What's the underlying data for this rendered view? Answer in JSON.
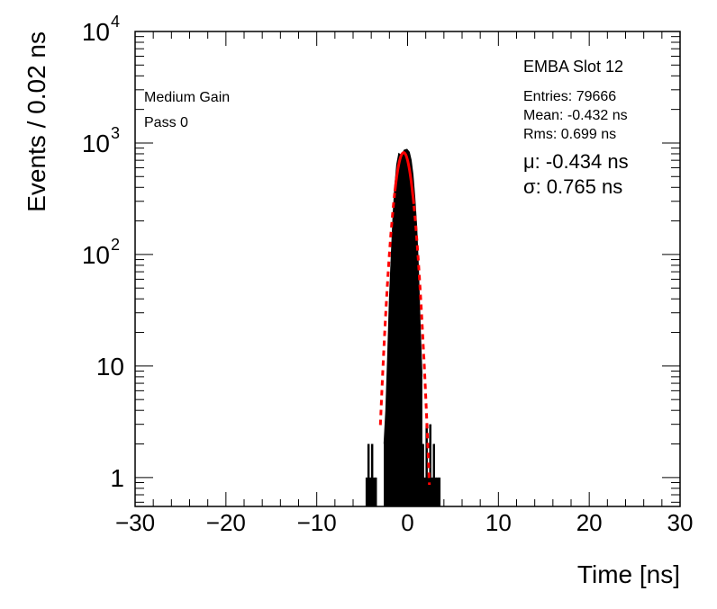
{
  "chart_data": {
    "type": "line",
    "title": "EMBA Slot 12",
    "xlabel": "Time [ns]",
    "ylabel": "Events / 0.02 ns",
    "xlim": [
      -30,
      30
    ],
    "ylim": [
      0.55,
      10000
    ],
    "yscale": "log",
    "x_ticks": [
      -30,
      -20,
      -10,
      0,
      10,
      20,
      30
    ],
    "x_tick_labels": [
      "−30",
      "−20",
      "−10",
      "0",
      "10",
      "20",
      "30"
    ],
    "y_ticks": [
      {
        "value": 1,
        "label": "1",
        "exp": ""
      },
      {
        "value": 10,
        "label": "10",
        "exp": ""
      },
      {
        "value": 100,
        "label": "10",
        "exp": "2"
      },
      {
        "value": 1000,
        "label": "10",
        "exp": "3"
      },
      {
        "value": 10000,
        "label": "10",
        "exp": "4"
      }
    ],
    "annotations_left": [
      "Medium Gain",
      "Pass 0"
    ],
    "stats": {
      "entries": "Entries: 79666",
      "mean": "Mean: -0.432 ns",
      "rms": "Rms: 0.699 ns"
    },
    "fit_text": {
      "mu": "μ: -0.434 ns",
      "sigma": "σ: 0.765 ns"
    },
    "series": [
      {
        "kind": "histogram",
        "color": "#000000",
        "x": [
          -4.5,
          -4.3,
          -4.1,
          -3.9,
          -3.7,
          -3.5,
          -2.5,
          -2.3,
          -2.1,
          -1.9,
          -1.7,
          -1.5,
          -1.3,
          -1.1,
          -0.9,
          -0.7,
          -0.5,
          -0.3,
          -0.1,
          0.1,
          0.3,
          0.5,
          0.7,
          0.9,
          1.1,
          1.3,
          1.5,
          1.7,
          1.9,
          2.1,
          2.3,
          2.5,
          2.7,
          2.9,
          3.1,
          3.3,
          3.5
        ],
        "y": [
          1,
          2,
          1,
          2,
          1,
          1,
          2,
          4,
          12,
          40,
          100,
          230,
          420,
          640,
          780,
          760,
          800,
          850,
          860,
          820,
          700,
          520,
          320,
          180,
          75,
          22,
          8,
          2,
          1,
          3,
          1,
          3,
          1,
          2,
          1,
          1,
          1
        ]
      },
      {
        "kind": "gaussian-fit",
        "color": "#ff0000",
        "mu": -0.434,
        "sigma": 0.765,
        "amplitude": 820,
        "x_range": [
          -3.0,
          2.4
        ]
      }
    ]
  }
}
